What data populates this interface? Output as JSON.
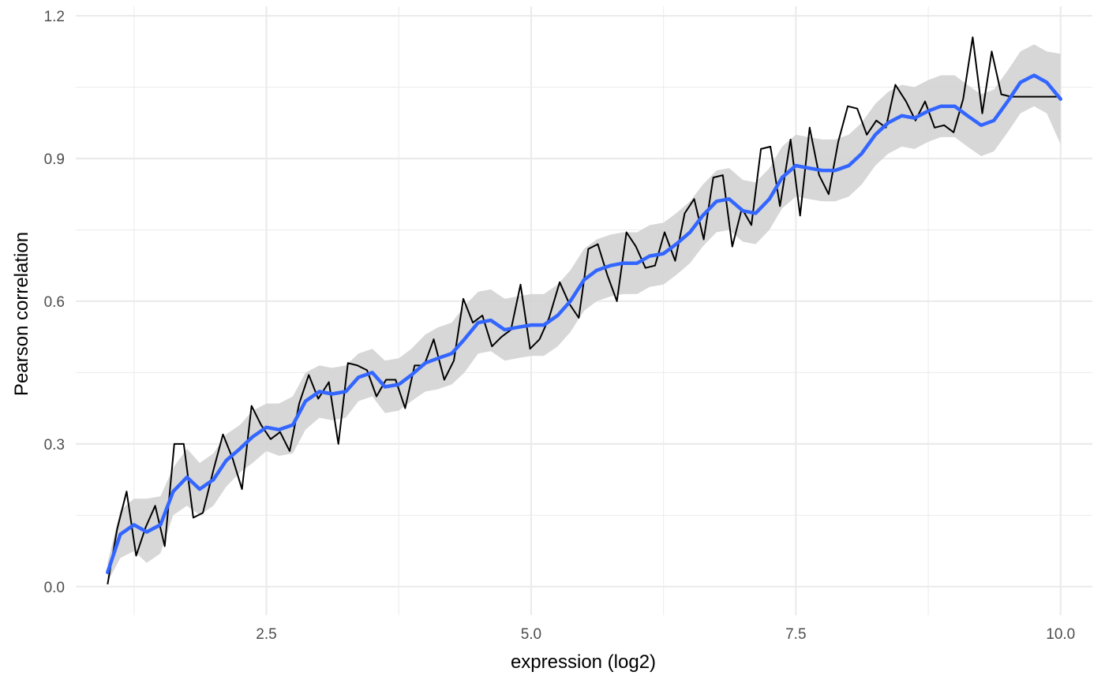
{
  "chart_data": {
    "type": "line",
    "title": "",
    "xlabel": "expression (log2)",
    "ylabel": "Pearson correlation",
    "xlim": [
      0.7,
      10.3
    ],
    "ylim": [
      -0.06,
      1.22
    ],
    "x_ticks": [
      2.5,
      5.0,
      7.5,
      10.0
    ],
    "x_tick_labels": [
      "2.5",
      "5.0",
      "7.5",
      "10.0"
    ],
    "x_minor_ticks": [
      1.25,
      3.75,
      6.25,
      8.75
    ],
    "y_ticks": [
      0.0,
      0.3,
      0.6,
      0.9,
      1.2
    ],
    "y_tick_labels": [
      "0.0",
      "0.3",
      "0.6",
      "0.9",
      "1.2"
    ],
    "y_minor_ticks": [
      0.15,
      0.45,
      0.75,
      1.05
    ],
    "grid": true,
    "legend": "none",
    "colors": {
      "raw_line": "#000000",
      "smooth_line": "#3366ff",
      "ribbon": "#d3d3d3",
      "grid": "#ebebeb"
    },
    "series": [
      {
        "kind": "raw",
        "x": [
          1.0,
          1.09,
          1.18,
          1.27,
          1.36,
          1.45,
          1.54,
          1.63,
          1.72,
          1.81,
          1.9,
          2.0,
          2.09,
          2.18,
          2.27,
          2.36,
          2.45,
          2.54,
          2.63,
          2.72,
          2.81,
          2.9,
          2.99,
          3.09,
          3.18,
          3.27,
          3.36,
          3.45,
          3.54,
          3.63,
          3.72,
          3.81,
          3.9,
          3.99,
          4.08,
          4.18,
          4.27,
          4.36,
          4.45,
          4.54,
          4.63,
          4.72,
          4.81,
          4.9,
          4.99,
          5.08,
          5.17,
          5.27,
          5.36,
          5.45,
          5.54,
          5.63,
          5.72,
          5.81,
          5.9,
          5.99,
          6.08,
          6.17,
          6.26,
          6.36,
          6.45,
          6.54,
          6.63,
          6.72,
          6.81,
          6.9,
          6.99,
          7.08,
          7.17,
          7.26,
          7.35,
          7.45,
          7.54,
          7.63,
          7.72,
          7.81,
          7.9,
          7.99,
          8.08,
          8.17,
          8.26,
          8.35,
          8.44,
          8.54,
          8.63,
          8.72,
          8.81,
          8.9,
          8.99,
          9.08,
          9.17,
          9.26,
          9.35,
          9.44,
          9.53,
          9.63,
          9.72,
          9.81,
          9.9,
          10.0
        ],
        "values": [
          0.005,
          0.12,
          0.2,
          0.065,
          0.125,
          0.17,
          0.085,
          0.3,
          0.3,
          0.145,
          0.155,
          0.245,
          0.32,
          0.27,
          0.205,
          0.38,
          0.34,
          0.31,
          0.325,
          0.285,
          0.385,
          0.445,
          0.395,
          0.43,
          0.3,
          0.47,
          0.465,
          0.455,
          0.4,
          0.435,
          0.435,
          0.375,
          0.465,
          0.465,
          0.52,
          0.435,
          0.475,
          0.605,
          0.555,
          0.57,
          0.505,
          0.525,
          0.54,
          0.635,
          0.5,
          0.52,
          0.565,
          0.64,
          0.595,
          0.565,
          0.71,
          0.72,
          0.655,
          0.6,
          0.745,
          0.715,
          0.67,
          0.675,
          0.745,
          0.685,
          0.785,
          0.815,
          0.73,
          0.86,
          0.865,
          0.715,
          0.795,
          0.76,
          0.92,
          0.925,
          0.8,
          0.94,
          0.78,
          0.965,
          0.865,
          0.825,
          0.935,
          1.01,
          1.005,
          0.95,
          0.98,
          0.965,
          1.055,
          1.02,
          0.98,
          1.02,
          0.965,
          0.97,
          0.955,
          1.025,
          1.155,
          0.995,
          1.125,
          1.035,
          1.03,
          1.03,
          1.03,
          1.03,
          1.03,
          1.03
        ]
      },
      {
        "kind": "smooth",
        "x": [
          1.0,
          1.12,
          1.25,
          1.37,
          1.5,
          1.62,
          1.75,
          1.87,
          2.0,
          2.12,
          2.25,
          2.37,
          2.5,
          2.62,
          2.75,
          2.87,
          3.0,
          3.12,
          3.25,
          3.37,
          3.5,
          3.62,
          3.75,
          3.87,
          4.0,
          4.12,
          4.25,
          4.37,
          4.5,
          4.62,
          4.75,
          4.87,
          5.0,
          5.12,
          5.25,
          5.37,
          5.5,
          5.62,
          5.75,
          5.87,
          6.0,
          6.12,
          6.25,
          6.37,
          6.5,
          6.62,
          6.75,
          6.87,
          7.0,
          7.12,
          7.25,
          7.37,
          7.5,
          7.62,
          7.75,
          7.87,
          8.0,
          8.12,
          8.25,
          8.37,
          8.5,
          8.62,
          8.75,
          8.87,
          9.0,
          9.12,
          9.25,
          9.37,
          9.5,
          9.62,
          9.75,
          9.87,
          10.0
        ],
        "values": [
          0.03,
          0.11,
          0.13,
          0.115,
          0.13,
          0.2,
          0.23,
          0.205,
          0.225,
          0.265,
          0.29,
          0.315,
          0.335,
          0.33,
          0.34,
          0.39,
          0.41,
          0.405,
          0.41,
          0.44,
          0.45,
          0.42,
          0.425,
          0.445,
          0.47,
          0.48,
          0.49,
          0.52,
          0.555,
          0.56,
          0.54,
          0.545,
          0.55,
          0.55,
          0.57,
          0.6,
          0.645,
          0.665,
          0.675,
          0.68,
          0.68,
          0.695,
          0.7,
          0.72,
          0.745,
          0.78,
          0.81,
          0.815,
          0.79,
          0.785,
          0.815,
          0.86,
          0.885,
          0.88,
          0.875,
          0.875,
          0.885,
          0.91,
          0.95,
          0.975,
          0.99,
          0.985,
          1.0,
          1.01,
          1.01,
          0.99,
          0.97,
          0.98,
          1.02,
          1.06,
          1.075,
          1.06,
          1.025
        ],
        "upper": [
          0.05,
          0.16,
          0.185,
          0.185,
          0.19,
          0.25,
          0.29,
          0.26,
          0.28,
          0.32,
          0.34,
          0.37,
          0.385,
          0.385,
          0.4,
          0.45,
          0.465,
          0.46,
          0.465,
          0.49,
          0.5,
          0.475,
          0.48,
          0.5,
          0.53,
          0.545,
          0.555,
          0.59,
          0.62,
          0.625,
          0.605,
          0.61,
          0.615,
          0.615,
          0.635,
          0.665,
          0.71,
          0.73,
          0.74,
          0.745,
          0.745,
          0.76,
          0.765,
          0.785,
          0.81,
          0.845,
          0.875,
          0.88,
          0.855,
          0.85,
          0.88,
          0.925,
          0.95,
          0.945,
          0.94,
          0.94,
          0.95,
          0.975,
          1.015,
          1.04,
          1.055,
          1.05,
          1.065,
          1.075,
          1.075,
          1.055,
          1.035,
          1.045,
          1.085,
          1.125,
          1.14,
          1.125,
          1.12
        ],
        "lower": [
          0.01,
          0.06,
          0.075,
          0.05,
          0.07,
          0.15,
          0.17,
          0.15,
          0.17,
          0.21,
          0.24,
          0.26,
          0.285,
          0.275,
          0.28,
          0.33,
          0.355,
          0.35,
          0.355,
          0.39,
          0.4,
          0.365,
          0.37,
          0.39,
          0.41,
          0.415,
          0.425,
          0.45,
          0.49,
          0.495,
          0.475,
          0.48,
          0.485,
          0.485,
          0.505,
          0.535,
          0.58,
          0.6,
          0.61,
          0.615,
          0.615,
          0.63,
          0.635,
          0.655,
          0.68,
          0.715,
          0.745,
          0.75,
          0.725,
          0.72,
          0.75,
          0.795,
          0.82,
          0.815,
          0.81,
          0.81,
          0.82,
          0.845,
          0.885,
          0.91,
          0.925,
          0.92,
          0.935,
          0.945,
          0.945,
          0.925,
          0.905,
          0.915,
          0.955,
          0.995,
          1.01,
          0.995,
          0.93
        ]
      }
    ]
  }
}
